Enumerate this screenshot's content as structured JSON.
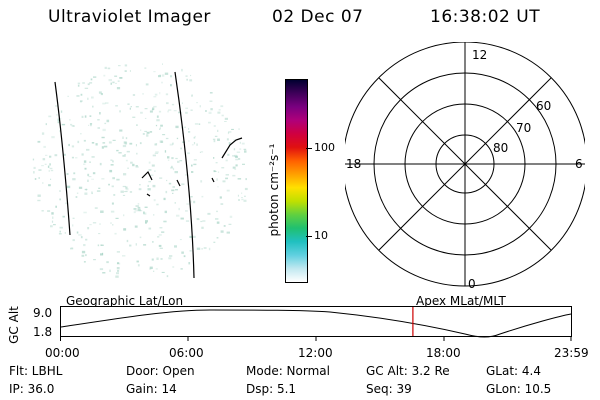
{
  "header": {
    "title": "Ultraviolet Imager",
    "date": "02 Dec 07",
    "time": "16:38:02 UT"
  },
  "colorbar": {
    "unit_label": "photon cm⁻²s⁻¹",
    "ticks": [
      {
        "value": 100,
        "label": "100"
      },
      {
        "value": 10,
        "label": "10"
      }
    ],
    "colors": [
      "#000030",
      "#40005a",
      "#7a0080",
      "#b0007a",
      "#d00040",
      "#e01010",
      "#ff6000",
      "#ffa000",
      "#ffe000",
      "#c0e000",
      "#60d040",
      "#20c070",
      "#20c0c0",
      "#60d0e0",
      "#c0e8f0",
      "#ffffff"
    ]
  },
  "polar": {
    "mlt_labels": {
      "top": "12",
      "bottom": "0",
      "left": "18",
      "right": "6"
    },
    "lat_labels": [
      "60",
      "70",
      "80"
    ]
  },
  "timeline": {
    "left_label": "Geographic Lat/Lon",
    "right_label": "Apex MLat/MLT",
    "axis_title": "GC Alt",
    "y_max": "9.0",
    "y_min": "1.8",
    "x_ticks": [
      "00:00",
      "06:00",
      "12:00",
      "18:00",
      "23:59"
    ],
    "current_time_fraction": 0.69
  },
  "info": {
    "flt": "Flt: LBHL",
    "door": "Door: Open",
    "mode": "Mode: Normal",
    "gc_alt": "GC Alt: 3.2 Re",
    "glat": "GLat:   4.4",
    "ip": "IP: 36.0",
    "gain": "Gain: 14",
    "dsp": "Dsp:     5.1",
    "seq": "Seq: 39",
    "glon": "GLon:  10.5"
  },
  "colors": {
    "marker": "#cc0000",
    "speckle": "#9fcfc0"
  }
}
